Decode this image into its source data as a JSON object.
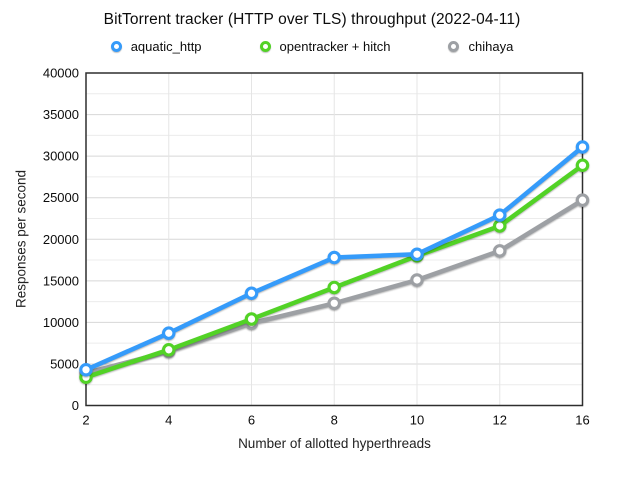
{
  "chart_data": {
    "type": "line",
    "title": "BitTorrent tracker (HTTP over TLS) throughput (2022-04-11)",
    "xlabel": "Number of allotted hyperthreads",
    "ylabel": "Responses per second",
    "categories": [
      "2",
      "4",
      "6",
      "8",
      "10",
      "12",
      "16"
    ],
    "ylim": [
      0,
      40000
    ],
    "y_major_step": 5000,
    "y_minor_step": 2500,
    "y_tick_labels": [
      "0",
      "5000",
      "10000",
      "15000",
      "20000",
      "25000",
      "30000",
      "35000",
      "40000"
    ],
    "grid": true,
    "legend_position": "top",
    "series": [
      {
        "name": "aquatic_http",
        "color": "#359BFA",
        "values": [
          4300,
          8700,
          13500,
          17800,
          18200,
          22900,
          31100
        ]
      },
      {
        "name": "opentracker + hitch",
        "color": "#52D226",
        "values": [
          3400,
          6700,
          10400,
          14200,
          18000,
          21600,
          28900
        ]
      },
      {
        "name": "chihaya",
        "color": "#9DA0A4",
        "values": [
          3900,
          6500,
          9900,
          12300,
          15100,
          18600,
          24700
        ]
      }
    ],
    "colors": {
      "plot_border": "#2e2e2e",
      "major_grid": "#d7d7d7",
      "minor_grid": "#ececec",
      "vertical_grid": "#e5e5e5",
      "tick_label": "#0c0c0c"
    }
  }
}
